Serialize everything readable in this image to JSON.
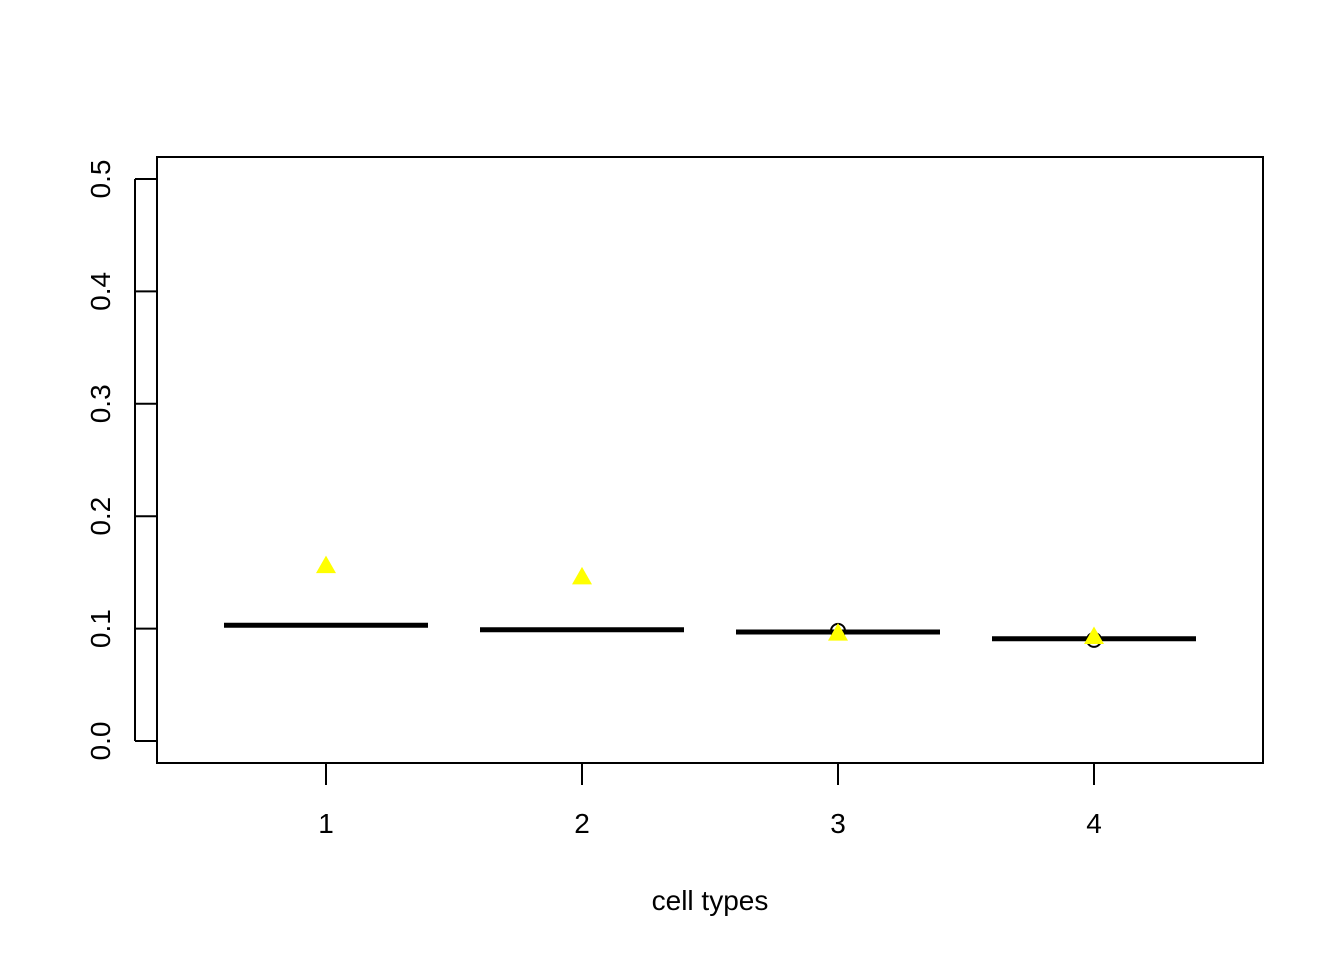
{
  "chart_data": {
    "type": "box",
    "title": "",
    "xlabel": "cell types",
    "ylabel": "",
    "categories": [
      "1",
      "2",
      "3",
      "4"
    ],
    "ylim": [
      0.0,
      0.5
    ],
    "yticks": [
      0.0,
      0.1,
      0.2,
      0.3,
      0.4,
      0.5
    ],
    "ytick_labels": [
      "0.0",
      "0.1",
      "0.2",
      "0.3",
      "0.4",
      "0.5"
    ],
    "grid": false,
    "legend": "none",
    "series": [
      {
        "kind": "median",
        "values": [
          0.103,
          0.099,
          0.097,
          0.091
        ],
        "color": "#000000"
      },
      {
        "kind": "outlier",
        "marker": "circle-open",
        "values": [
          null,
          null,
          0.098,
          0.09
        ],
        "color": "#000000"
      },
      {
        "kind": "point",
        "marker": "triangle",
        "values": [
          0.156,
          0.146,
          0.096,
          0.093
        ],
        "color": "#ffff00"
      }
    ]
  }
}
